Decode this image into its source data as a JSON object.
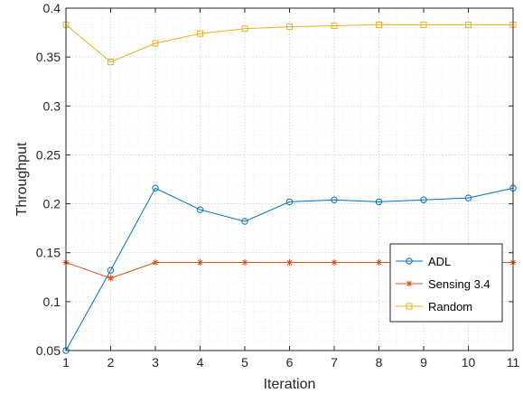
{
  "chart_data": {
    "type": "line",
    "title": "",
    "xlabel": "Iteration",
    "ylabel": "Throughput",
    "x": [
      1,
      2,
      3,
      4,
      5,
      6,
      7,
      8,
      9,
      10,
      11
    ],
    "xlim": [
      1,
      11
    ],
    "ylim": [
      0.05,
      0.4
    ],
    "xticks": [
      "1",
      "2",
      "3",
      "4",
      "5",
      "6",
      "7",
      "8",
      "9",
      "10",
      "11"
    ],
    "yticks": [
      "0.05",
      "0.1",
      "0.15",
      "0.2",
      "0.25",
      "0.3",
      "0.35",
      "0.4"
    ],
    "grid": true,
    "minor_grid": true,
    "legend_position": "bottom-right",
    "series": [
      {
        "name": "ADL",
        "color": "#0072BD",
        "marker": "circle",
        "values": [
          0.05,
          0.132,
          0.216,
          0.194,
          0.182,
          0.202,
          0.204,
          0.202,
          0.204,
          0.206,
          0.216
        ]
      },
      {
        "name": "Sensing 3.4",
        "color": "#D95319",
        "marker": "asterisk",
        "values": [
          0.14,
          0.124,
          0.14,
          0.14,
          0.14,
          0.14,
          0.14,
          0.14,
          0.14,
          0.14,
          0.14
        ]
      },
      {
        "name": "Random",
        "color": "#EDB120",
        "marker": "square",
        "values": [
          0.383,
          0.345,
          0.364,
          0.374,
          0.379,
          0.381,
          0.382,
          0.383,
          0.383,
          0.383,
          0.383
        ]
      }
    ]
  }
}
